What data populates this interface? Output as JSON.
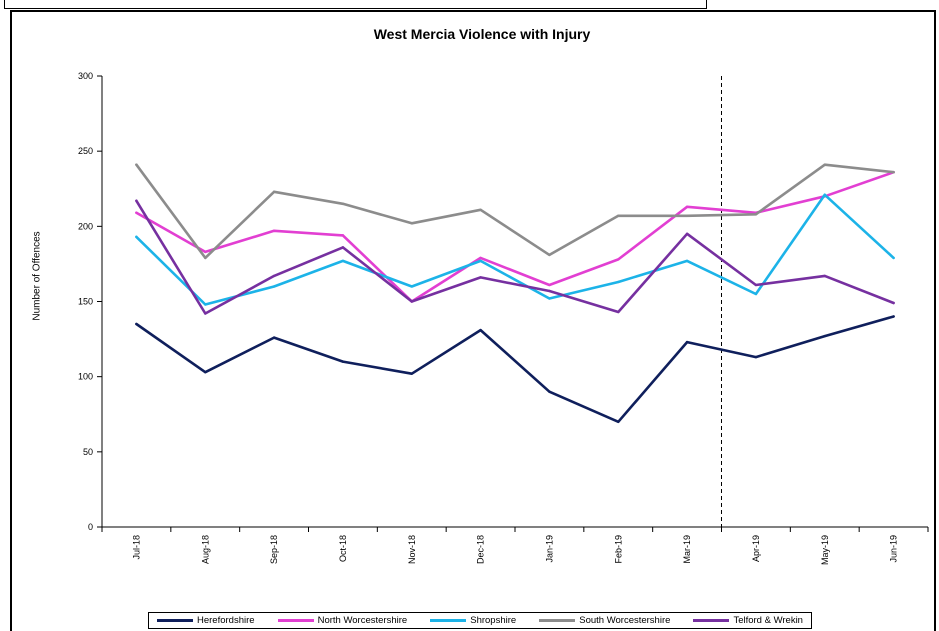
{
  "chart_data": {
    "type": "line",
    "title": "West Mercia Violence with Injury",
    "ylabel": "Number of Offences",
    "ylim": [
      0,
      300
    ],
    "yticks": [
      0,
      50,
      100,
      150,
      200,
      250,
      300
    ],
    "categories": [
      "Jul-18",
      "Aug-18",
      "Sep-18",
      "Oct-18",
      "Nov-18",
      "Dec-18",
      "Jan-19",
      "Feb-19",
      "Mar-19",
      "Apr-19",
      "May-19",
      "Jun-19"
    ],
    "series": [
      {
        "name": "Herefordshire",
        "color": "#0f1f5c",
        "values": [
          135,
          103,
          126,
          110,
          102,
          131,
          90,
          70,
          123,
          113,
          127,
          140
        ]
      },
      {
        "name": "North Worcestershire",
        "color": "#e23fd2",
        "values": [
          209,
          183,
          197,
          194,
          150,
          179,
          161,
          178,
          213,
          209,
          220,
          236
        ]
      },
      {
        "name": "Shropshire",
        "color": "#1cb3e8",
        "values": [
          193,
          148,
          160,
          177,
          160,
          177,
          152,
          163,
          177,
          155,
          221,
          179
        ]
      },
      {
        "name": "South Worcestershire",
        "color": "#8c8c8c",
        "values": [
          241,
          179,
          223,
          215,
          202,
          211,
          181,
          207,
          207,
          208,
          241,
          236
        ]
      },
      {
        "name": "Telford & Wrekin",
        "color": "#7630a0",
        "values": [
          217,
          142,
          167,
          186,
          150,
          166,
          157,
          143,
          195,
          161,
          167,
          149
        ]
      }
    ],
    "reference_line": {
      "between": [
        "Mar-19",
        "Apr-19"
      ],
      "style": "dashed"
    },
    "grid": false,
    "legend": "bottom"
  }
}
